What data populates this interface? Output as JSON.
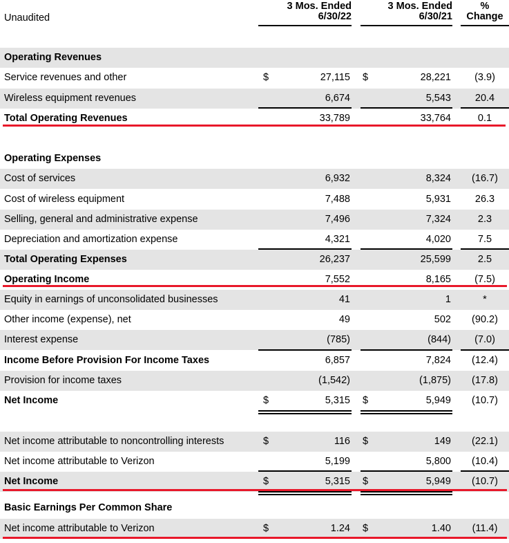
{
  "header": {
    "label": "Unaudited",
    "col1_line1": "3 Mos. Ended",
    "col1_line2": "6/30/22",
    "col2_line1": "3 Mos. Ended",
    "col2_line2": "6/30/21",
    "col3_line1": "%",
    "col3_line2": "Change"
  },
  "rows": [
    {
      "label": "Operating Revenues"
    },
    {
      "label": "Service revenues and other",
      "d1": "$",
      "v1": "27,115",
      "d2": "$",
      "v2": "28,221",
      "v3": "(3.9)"
    },
    {
      "label": "Wireless equipment revenues",
      "v1": "6,674",
      "v2": "5,543",
      "v3": "20.4"
    },
    {
      "label": "Total Operating Revenues",
      "v1": "33,789",
      "v2": "33,764",
      "v3": "0.1"
    },
    {
      "label": "Operating Expenses"
    },
    {
      "label": "Cost of services",
      "v1": "6,932",
      "v2": "8,324",
      "v3": "(16.7)"
    },
    {
      "label": "Cost of wireless equipment",
      "v1": "7,488",
      "v2": "5,931",
      "v3": "26.3"
    },
    {
      "label": "Selling, general and administrative expense",
      "v1": "7,496",
      "v2": "7,324",
      "v3": "2.3"
    },
    {
      "label": "Depreciation and amortization expense",
      "v1": "4,321",
      "v2": "4,020",
      "v3": "7.5"
    },
    {
      "label": "Total Operating Expenses",
      "v1": "26,237",
      "v2": "25,599",
      "v3": "2.5"
    },
    {
      "label": "Operating Income",
      "v1": "7,552",
      "v2": "8,165",
      "v3": "(7.5)"
    },
    {
      "label": "Equity in earnings of unconsolidated businesses",
      "v1": "41",
      "v2": "1",
      "v3": "*"
    },
    {
      "label": "Other income (expense), net",
      "v1": "49",
      "v2": "502",
      "v3": "(90.2)"
    },
    {
      "label": "Interest expense",
      "v1": "(785)",
      "v2": "(844)",
      "v3": "(7.0)"
    },
    {
      "label": "Income Before Provision For Income Taxes",
      "v1": "6,857",
      "v2": "7,824",
      "v3": "(12.4)"
    },
    {
      "label": "Provision for income taxes",
      "v1": "(1,542)",
      "v2": "(1,875)",
      "v3": "(17.8)"
    },
    {
      "label": "Net Income",
      "d1": "$",
      "v1": "5,315",
      "d2": "$",
      "v2": "5,949",
      "v3": "(10.7)"
    },
    {
      "label": "Net income attributable to noncontrolling interests",
      "d1": "$",
      "v1": "116",
      "d2": "$",
      "v2": "149",
      "v3": "(22.1)"
    },
    {
      "label": "Net income attributable to Verizon",
      "v1": "5,199",
      "v2": "5,800",
      "v3": "(10.4)"
    },
    {
      "label": "Net Income",
      "d1": "$",
      "v1": "5,315",
      "d2": "$",
      "v2": "5,949",
      "v3": "(10.7)"
    },
    {
      "label": "Basic Earnings Per Common Share"
    },
    {
      "label": "Net income attributable to Verizon",
      "d1": "$",
      "v1": "1.24",
      "d2": "$",
      "v2": "1.40",
      "v3": "(11.4)"
    }
  ]
}
